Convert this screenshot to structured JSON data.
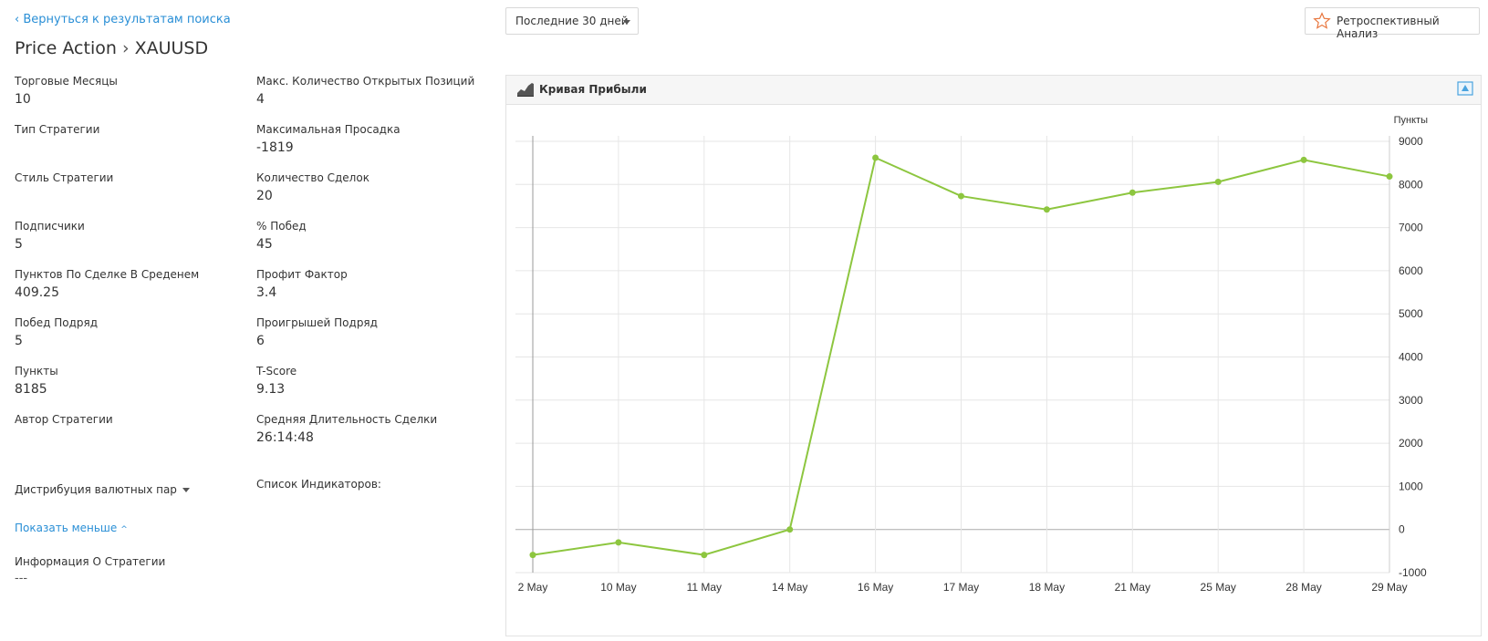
{
  "header": {
    "back_link": "‹ Вернуться к результатам поиска",
    "title_main": "Price Action",
    "title_sep": "›",
    "title_symbol": "XAUUSD"
  },
  "period": {
    "selected": "Последние 30 дней"
  },
  "retro_button": {
    "label": "Ретроспективный Анализ"
  },
  "stats": {
    "left": [
      {
        "label": "Торговые Месяцы",
        "value": "10"
      },
      {
        "label": "Тип Стратегии",
        "value": ""
      },
      {
        "label": "Стиль Стратегии",
        "value": ""
      },
      {
        "label": "Подписчики",
        "value": "5"
      },
      {
        "label": "Пунктов По Сделке В Среденем",
        "value": "409.25"
      },
      {
        "label": "Побед Подряд",
        "value": "5"
      },
      {
        "label": "Пункты",
        "value": "8185"
      },
      {
        "label": "Автор Стратегии",
        "value": ""
      }
    ],
    "right": [
      {
        "label": "Макс. Количество Открытых Позиций",
        "value": "4"
      },
      {
        "label": "Максимальная Просадка",
        "value": "-1819"
      },
      {
        "label": "Количество Сделок",
        "value": "20"
      },
      {
        "label": "% Побед",
        "value": "45"
      },
      {
        "label": "Профит Фактор",
        "value": "3.4"
      },
      {
        "label": "Проигрышей Подряд",
        "value": "6"
      },
      {
        "label": "T-Score",
        "value": "9.13"
      },
      {
        "label": "Средняя Длительность Сделки",
        "value": "26:14:48"
      },
      {
        "label": "Список Индикаторов:",
        "value": ""
      }
    ]
  },
  "distribution_label": "Дистрибуция валютных пар",
  "show_less_label": "Показать меньше",
  "info": {
    "label": "Информация О Стратегии",
    "value": "---"
  },
  "chart_panel": {
    "title": "Кривая Прибыли",
    "line_color": "#8dc63f"
  },
  "chart_data": {
    "type": "line",
    "title": "Кривая Прибыли",
    "xlabel": "",
    "ylabel": "Пункты",
    "categories": [
      "2 May",
      "10 May",
      "11 May",
      "14 May",
      "16 May",
      "17 May",
      "18 May",
      "21 May",
      "25 May",
      "28 May",
      "29 May"
    ],
    "series": [
      {
        "values": [
          -590,
          -300,
          -590,
          0,
          8620,
          7730,
          7420,
          7810,
          8060,
          8570,
          8185
        ]
      }
    ],
    "ylim": [
      -1000,
      9000
    ],
    "yticks": [
      -1000,
      0,
      1000,
      2000,
      3000,
      4000,
      5000,
      6000,
      7000,
      8000,
      9000
    ],
    "grid": true,
    "y_axis_side": "right"
  }
}
